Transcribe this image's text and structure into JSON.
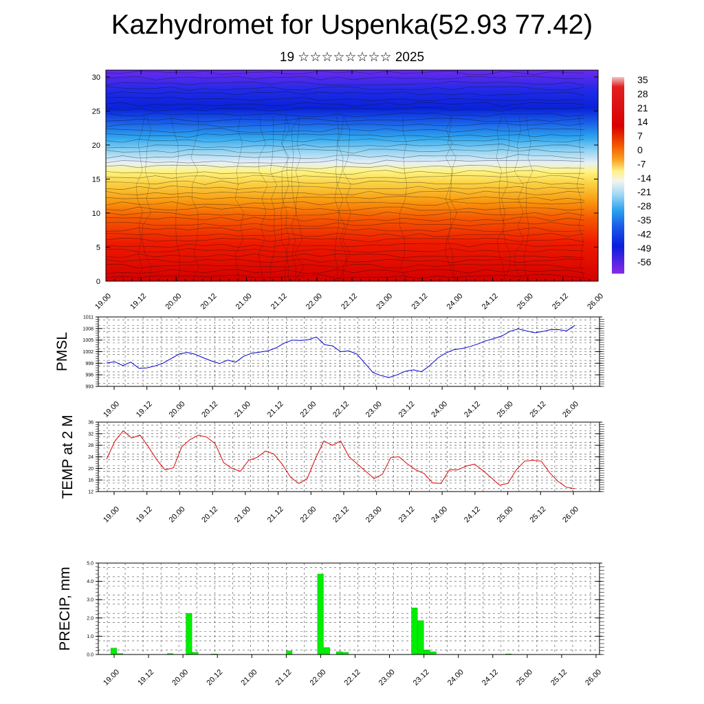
{
  "title": "Kazhydromet for Uspenka(52.93 77.42)",
  "subtitle": "19 ☆☆☆☆☆☆☆☆ 2025",
  "chart_data": [
    {
      "type": "heatmap",
      "name": "temperature-cross-section",
      "ylim": [
        0,
        31
      ],
      "yticks": [
        "0",
        "5",
        "10",
        "15",
        "20",
        "25",
        "30"
      ],
      "xticks": [
        "19.00",
        "19.12",
        "20.00",
        "20.12",
        "21.00",
        "21.12",
        "22.00",
        "22.12",
        "23.00",
        "23.12",
        "24.00",
        "24.12",
        "25.00",
        "25.12",
        "26.00"
      ],
      "colorbar": {
        "labels": [
          "35",
          "28",
          "21",
          "14",
          "7",
          "0",
          "-7",
          "-14",
          "-21",
          "-28",
          "-35",
          "-42",
          "-49",
          "-56"
        ],
        "range": [
          -63,
          42
        ]
      }
    },
    {
      "type": "line",
      "name": "pmsl",
      "ylabel": "PMSL",
      "ylim": [
        993,
        1011
      ],
      "yticks": [
        "993",
        "996",
        "999",
        "1002",
        "1005",
        "1008",
        "1011"
      ],
      "xticks": [
        "19.00",
        "19.12",
        "20.00",
        "20.12",
        "21.00",
        "21.12",
        "22.00",
        "22.12",
        "23.00",
        "23.12",
        "24.00",
        "24.12",
        "25.00",
        "25.12",
        "26.00"
      ],
      "color": "#0000cc",
      "values": [
        999.0,
        999.4,
        998.4,
        999.3,
        997.7,
        997.8,
        998.3,
        999.0,
        1000.2,
        1001.4,
        1001.8,
        1001.3,
        1000.4,
        999.6,
        998.9,
        999.8,
        999.3,
        1000.8,
        1001.6,
        1001.9,
        1002.2,
        1003.0,
        1004.2,
        1005.0,
        1004.9,
        1005.1,
        1005.8,
        1003.8,
        1003.5,
        1002.0,
        1002.2,
        1001.4,
        999.0,
        996.6,
        995.8,
        995.3,
        996.0,
        996.9,
        997.3,
        996.8,
        998.3,
        1000.3,
        1001.6,
        1002.5,
        1002.8,
        1003.3,
        1004.0,
        1004.8,
        1005.4,
        1006.1,
        1007.3,
        1007.9,
        1007.4,
        1006.9,
        1007.2,
        1007.7,
        1007.7,
        1007.4,
        1008.8
      ]
    },
    {
      "type": "line",
      "name": "temp-2m",
      "ylabel": "TEMP at 2 M",
      "ylim": [
        12,
        36
      ],
      "yticks": [
        "12",
        "16",
        "20",
        "24",
        "28",
        "32",
        "36"
      ],
      "xticks": [
        "19.00",
        "19.12",
        "20.00",
        "20.12",
        "21.00",
        "21.12",
        "22.00",
        "22.12",
        "23.00",
        "23.12",
        "24.00",
        "24.12",
        "25.00",
        "25.12",
        "26.00"
      ],
      "color": "#dd0000",
      "values": [
        23.2,
        29.5,
        33.0,
        30.5,
        31.5,
        27.5,
        23.0,
        19.5,
        20.2,
        27.5,
        30.0,
        31.5,
        30.8,
        28.5,
        22.0,
        20.0,
        19.0,
        22.8,
        23.8,
        26.0,
        25.0,
        21.5,
        17.0,
        14.8,
        16.5,
        23.5,
        29.5,
        28.0,
        29.5,
        24.0,
        21.5,
        19.0,
        16.5,
        18.0,
        23.8,
        24.0,
        21.5,
        19.5,
        18.2,
        15.0,
        14.8,
        19.5,
        19.5,
        20.8,
        21.5,
        19.3,
        16.8,
        14.2,
        14.8,
        19.5,
        22.5,
        22.8,
        22.5,
        18.5,
        15.5,
        13.5,
        13.0
      ]
    },
    {
      "type": "bar",
      "name": "precip",
      "ylabel": "PRECIP, mm",
      "ylim": [
        0,
        5
      ],
      "yticks": [
        "0.0",
        "1.0",
        "2.0",
        "3.0",
        "4.0",
        "5.0"
      ],
      "xticks": [
        "19.00",
        "19.12",
        "20.00",
        "20.12",
        "21.00",
        "21.12",
        "22.00",
        "22.12",
        "23.00",
        "23.12",
        "24.00",
        "24.12",
        "25.00",
        "25.12",
        "26.00"
      ],
      "color": "#00ee00",
      "values": [
        0,
        0,
        0.35,
        0.05,
        0,
        0,
        0,
        0,
        0,
        0,
        0,
        0.05,
        0,
        0,
        2.25,
        0.12,
        0,
        0,
        0.03,
        0,
        0,
        0,
        0,
        0,
        0,
        0,
        0,
        0,
        0,
        0,
        0.2,
        0,
        0,
        0,
        0,
        4.4,
        0.38,
        0,
        0.15,
        0.12,
        0,
        0,
        0,
        0,
        0,
        0,
        0,
        0,
        0,
        0,
        2.55,
        1.85,
        0.25,
        0.15,
        0,
        0,
        0,
        0,
        0,
        0,
        0,
        0,
        0,
        0,
        0,
        0.03,
        0,
        0,
        0,
        0,
        0,
        0,
        0,
        0,
        0,
        0,
        0,
        0,
        0,
        0
      ]
    }
  ]
}
